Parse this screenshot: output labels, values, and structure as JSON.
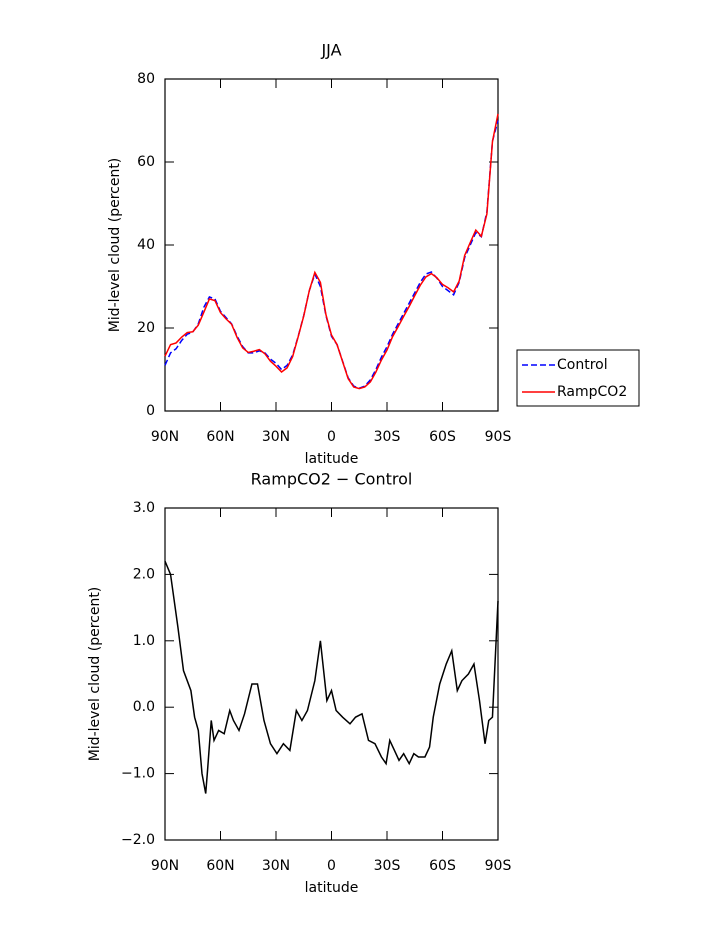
{
  "chart_data": [
    {
      "type": "line",
      "title": "JJA",
      "xlabel": "latitude",
      "ylabel": "Mid-level cloud (percent)",
      "x": [
        90,
        87,
        84,
        81,
        78,
        75,
        72,
        69,
        66,
        63,
        60,
        57,
        54,
        51,
        48,
        45,
        42,
        39,
        36,
        33,
        30,
        27,
        24,
        21,
        18,
        15,
        12,
        9,
        6,
        3,
        0,
        -3,
        -6,
        -9,
        -12,
        -15,
        -18,
        -21,
        -24,
        -27,
        -30,
        -33,
        -36,
        -39,
        -42,
        -45,
        -48,
        -51,
        -54,
        -57,
        -60,
        -63,
        -66,
        -69,
        -72,
        -75,
        -78,
        -81,
        -84,
        -87,
        -90
      ],
      "series": [
        {
          "name": "Control",
          "color": "#0000ff",
          "dash": true,
          "values": [
            11,
            14,
            15,
            17,
            18.5,
            19,
            21,
            25,
            27.5,
            27,
            24,
            22.5,
            21,
            18,
            15.5,
            14,
            14,
            14.5,
            14,
            12.5,
            11.5,
            10,
            11,
            13.5,
            18,
            23,
            29,
            33,
            30,
            23,
            18,
            16,
            12,
            8,
            6,
            5.5,
            6,
            7.5,
            10,
            13,
            15.5,
            18.5,
            21,
            23.5,
            26,
            28.5,
            31,
            33,
            33.5,
            32,
            30,
            29,
            28,
            31,
            37,
            40,
            43,
            42,
            48,
            65,
            70
          ]
        },
        {
          "name": "RampCO2",
          "color": "#ff0000",
          "dash": false,
          "values": [
            13.2,
            16,
            16.4,
            17.8,
            18.9,
            19.1,
            20.7,
            23.8,
            27,
            26.6,
            23.7,
            22.2,
            20.9,
            17.7,
            15.2,
            14.1,
            14.4,
            14.8,
            13.8,
            12,
            10.8,
            9.4,
            10.4,
            13.1,
            17.9,
            22.9,
            29,
            33.4,
            31,
            23.2,
            18.3,
            16,
            11.9,
            7.8,
            5.8,
            5.4,
            5.8,
            7,
            9.4,
            12.3,
            14.7,
            17.9,
            20.3,
            22.8,
            25.2,
            27.8,
            30.3,
            32.3,
            33.1,
            32.1,
            30.5,
            29.7,
            28.7,
            31.3,
            37.5,
            40.6,
            43.6,
            42.1,
            47.5,
            64.9,
            71.6
          ]
        }
      ],
      "xlim": [
        90,
        -90
      ],
      "xticks": [
        {
          "value": 90,
          "label": "90N"
        },
        {
          "value": 60,
          "label": "60N"
        },
        {
          "value": 30,
          "label": "30N"
        },
        0,
        {
          "value": -30,
          "label": "30S"
        },
        {
          "value": -60,
          "label": "60S"
        },
        {
          "value": -90,
          "label": "90S"
        }
      ],
      "ylim": [
        0,
        80
      ],
      "yticks": [
        0,
        20,
        40,
        60,
        80
      ],
      "legend": "right"
    },
    {
      "type": "line",
      "title": "RampCO2 − Control",
      "xlabel": "latitude",
      "ylabel": "Mid-level cloud (percent)",
      "x": [
        90,
        87,
        83,
        80,
        76,
        74,
        72,
        70,
        68,
        67,
        65,
        63.5,
        61,
        58,
        55,
        53,
        50,
        47,
        43,
        40,
        36.5,
        33,
        29.5,
        26,
        22.5,
        19,
        16,
        13,
        9,
        6,
        2.5,
        0,
        -2.5,
        -6,
        -10,
        -13,
        -16.5,
        -20,
        -23.5,
        -27,
        -29.5,
        -31.5,
        -34,
        -36.5,
        -39,
        -42,
        -44.5,
        -47,
        -50.5,
        -53,
        -55,
        -58.5,
        -62,
        -65,
        -68,
        -70.5,
        -74,
        -77,
        -80,
        -83,
        -85,
        -87,
        -90
      ],
      "series": [
        {
          "name": "RampCO2 − Control",
          "color": "#000000",
          "dash": false,
          "values": [
            2.2,
            2.0,
            1.2,
            0.55,
            0.25,
            -0.15,
            -0.35,
            -1.0,
            -1.3,
            -0.95,
            -0.2,
            -0.5,
            -0.35,
            -0.4,
            -0.05,
            -0.2,
            -0.35,
            -0.1,
            0.35,
            0.35,
            -0.2,
            -0.55,
            -0.7,
            -0.55,
            -0.65,
            -0.05,
            -0.2,
            -0.05,
            0.4,
            1.0,
            0.1,
            0.25,
            -0.05,
            -0.15,
            -0.25,
            -0.15,
            -0.1,
            -0.5,
            -0.55,
            -0.75,
            -0.85,
            -0.5,
            -0.65,
            -0.8,
            -0.7,
            -0.85,
            -0.7,
            -0.75,
            -0.75,
            -0.6,
            -0.15,
            0.35,
            0.65,
            0.85,
            0.25,
            0.4,
            0.5,
            0.65,
            0.1,
            -0.55,
            -0.2,
            -0.15,
            1.6
          ]
        }
      ],
      "xlim": [
        90,
        -90
      ],
      "xticks": [
        {
          "value": 90,
          "label": "90N"
        },
        {
          "value": 60,
          "label": "60N"
        },
        {
          "value": 30,
          "label": "30N"
        },
        0,
        {
          "value": -30,
          "label": "30S"
        },
        {
          "value": -60,
          "label": "60S"
        },
        {
          "value": -90,
          "label": "90S"
        }
      ],
      "ylim": [
        -2,
        3
      ],
      "yticks": [
        {
          "value": -2,
          "label": "−2.0"
        },
        {
          "value": -1,
          "label": "−1.0"
        },
        {
          "value": 0,
          "label": "0.0"
        },
        {
          "value": 1,
          "label": "1.0"
        },
        {
          "value": 2,
          "label": "2.0"
        },
        {
          "value": 3,
          "label": "3.0"
        }
      ]
    }
  ]
}
